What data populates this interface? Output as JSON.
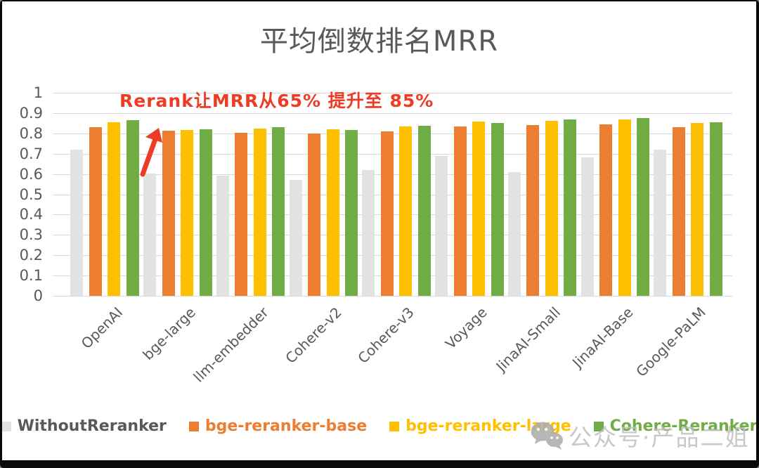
{
  "title": "平均倒数排名MRR",
  "annotation": {
    "text": "Rerank让MRR从65% 提升至 85%"
  },
  "watermark": {
    "icon": "wechat-icon",
    "text": "公众号·产品二姐"
  },
  "colors": {
    "title_text": "#595959",
    "axis_text": "#595959",
    "gridline": "#d9d9d9",
    "annotation": "#ee3b24",
    "watermark": "#bfbfbf"
  },
  "chart_data": {
    "type": "bar",
    "title": "平均倒数排名MRR",
    "categories": [
      "OpenAI",
      "bge-large",
      "llm-embedder",
      "Cohere-v2",
      "Cohere-v3",
      "Voyage",
      "JinaAI-Small",
      "JinaAI-Base",
      "Google-PaLM"
    ],
    "series": [
      {
        "name": "WithoutReranker",
        "color": "#e3e2e2",
        "label_color": "#595959",
        "values": [
          0.719,
          0.603,
          0.593,
          0.571,
          0.62,
          0.687,
          0.608,
          0.683,
          0.719
        ]
      },
      {
        "name": "bge-reranker-base",
        "color": "#ed7d31",
        "label_color": "#ed7d31",
        "values": [
          0.832,
          0.813,
          0.803,
          0.799,
          0.809,
          0.835,
          0.841,
          0.845,
          0.83
        ]
      },
      {
        "name": "bge-reranker-large",
        "color": "#ffc000",
        "label_color": "#ffc000",
        "values": [
          0.856,
          0.815,
          0.822,
          0.821,
          0.833,
          0.857,
          0.861,
          0.868,
          0.852
        ]
      },
      {
        "name": "Cohere-Reranker",
        "color": "#70ad47",
        "label_color": "#70ad47",
        "values": [
          0.865,
          0.82,
          0.829,
          0.816,
          0.837,
          0.852,
          0.87,
          0.875,
          0.856
        ]
      }
    ],
    "ylim": [
      0,
      1
    ],
    "yticks": [
      "0",
      "0.1",
      "0.2",
      "0.3",
      "0.4",
      "0.5",
      "0.6",
      "0.7",
      "0.8",
      "0.9",
      "1"
    ],
    "grid": true,
    "legend_position": "bottom"
  }
}
